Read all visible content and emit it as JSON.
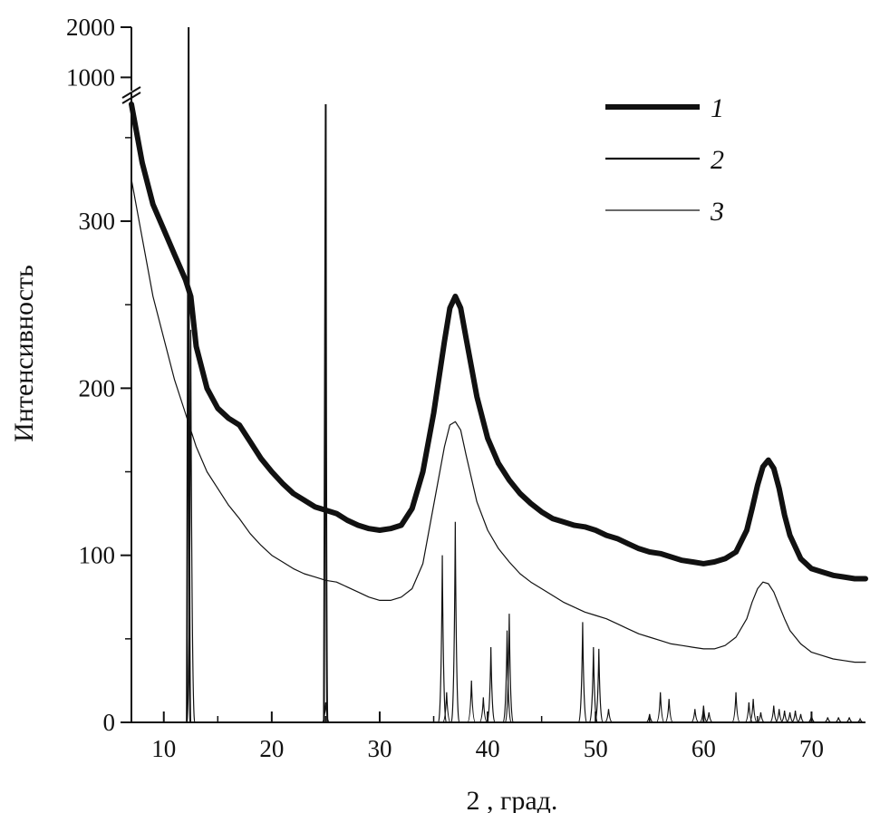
{
  "chart_data": {
    "type": "line",
    "xlabel": "2 , град.",
    "ylabel": "Интенсивность",
    "xlim": [
      7,
      75
    ],
    "ylim": [
      0,
      370
    ],
    "ylim_upper_break": [
      700,
      2000
    ],
    "x_ticks": [
      10,
      20,
      30,
      40,
      50,
      60,
      70
    ],
    "y_ticks": [
      0,
      100,
      200,
      300
    ],
    "y_ticks_upper": [
      1000,
      2000
    ],
    "axis_break": "y-axis, between 370 and 1000",
    "grid": false,
    "legend_position": "top-right",
    "colors": {
      "ink": "#111111",
      "background": "#ffffff"
    },
    "series": [
      {
        "name": "1",
        "style": "thick",
        "x": [
          7,
          8,
          9,
          10,
          11,
          12,
          12.5,
          13,
          14,
          15,
          16,
          17,
          18,
          19,
          20,
          21,
          22,
          23,
          24,
          25,
          26,
          27,
          28,
          29,
          30,
          31,
          32,
          33,
          34,
          35,
          36,
          36.5,
          37,
          37.5,
          38,
          39,
          40,
          41,
          42,
          43,
          44,
          45,
          46,
          47,
          48,
          49,
          50,
          51,
          52,
          53,
          54,
          55,
          56,
          57,
          58,
          59,
          60,
          61,
          62,
          63,
          64,
          64.5,
          65,
          65.5,
          66,
          66.5,
          67,
          67.5,
          68,
          69,
          70,
          71,
          72,
          73,
          74,
          75
        ],
        "y": [
          370,
          335,
          310,
          295,
          280,
          265,
          255,
          225,
          200,
          188,
          182,
          178,
          168,
          158,
          150,
          143,
          137,
          133,
          129,
          127,
          125,
          121,
          118,
          116,
          115,
          116,
          118,
          128,
          150,
          185,
          228,
          248,
          255,
          248,
          230,
          195,
          170,
          155,
          145,
          137,
          131,
          126,
          122,
          120,
          118,
          117,
          115,
          112,
          110,
          107,
          104,
          102,
          101,
          99,
          97,
          96,
          95,
          96,
          98,
          102,
          115,
          128,
          142,
          153,
          157,
          152,
          140,
          124,
          112,
          98,
          92,
          90,
          88,
          87,
          86,
          86
        ]
      },
      {
        "name": "2",
        "style": "medium",
        "type": "stick",
        "peaks": [
          [
            12.3,
            2000
          ],
          [
            25.0,
            370
          ]
        ],
        "note": "sharp reference peaks"
      },
      {
        "name": "3",
        "style": "thin",
        "x": [
          7,
          8,
          9,
          10,
          11,
          12,
          12.5,
          13,
          14,
          15,
          16,
          17,
          18,
          19,
          20,
          21,
          22,
          23,
          24,
          25,
          26,
          27,
          28,
          29,
          30,
          31,
          32,
          33,
          34,
          35,
          36,
          36.5,
          37,
          37.5,
          38,
          39,
          40,
          41,
          42,
          43,
          44,
          45,
          46,
          47,
          48,
          49,
          50,
          51,
          52,
          53,
          54,
          55,
          56,
          57,
          58,
          59,
          60,
          61,
          62,
          63,
          64,
          64.5,
          65,
          65.5,
          66,
          66.5,
          67,
          67.5,
          68,
          69,
          70,
          71,
          72,
          73,
          74,
          75
        ],
        "y": [
          325,
          290,
          255,
          230,
          205,
          185,
          175,
          165,
          150,
          140,
          130,
          122,
          113,
          106,
          100,
          96,
          92,
          89,
          87,
          85,
          84,
          81,
          78,
          75,
          73,
          73,
          75,
          80,
          95,
          130,
          165,
          178,
          180,
          175,
          160,
          132,
          115,
          104,
          96,
          89,
          84,
          80,
          76,
          72,
          69,
          66,
          64,
          62,
          59,
          56,
          53,
          51,
          49,
          47,
          46,
          45,
          44,
          44,
          46,
          51,
          62,
          72,
          80,
          84,
          83,
          78,
          70,
          62,
          55,
          47,
          42,
          40,
          38,
          37,
          36,
          36
        ]
      },
      {
        "name": "",
        "style": "thin",
        "type": "stick",
        "peaks": [
          [
            12.5,
            235
          ],
          [
            25.0,
            12
          ],
          [
            35.8,
            100
          ],
          [
            36.2,
            18
          ],
          [
            37.0,
            120
          ],
          [
            38.5,
            25
          ],
          [
            39.6,
            15
          ],
          [
            40.3,
            45
          ],
          [
            41.8,
            55
          ],
          [
            42.0,
            65
          ],
          [
            48.8,
            60
          ],
          [
            49.8,
            45
          ],
          [
            50.3,
            44
          ],
          [
            51.2,
            8
          ],
          [
            55.0,
            5
          ],
          [
            56.0,
            18
          ],
          [
            56.8,
            14
          ],
          [
            59.2,
            8
          ],
          [
            60.0,
            10
          ],
          [
            60.5,
            6
          ],
          [
            63.0,
            18
          ],
          [
            64.2,
            12
          ],
          [
            64.6,
            14
          ],
          [
            65.3,
            6
          ],
          [
            66.5,
            10
          ],
          [
            67.0,
            8
          ],
          [
            67.5,
            7
          ],
          [
            68.0,
            6
          ],
          [
            68.5,
            7
          ],
          [
            69.0,
            5
          ],
          [
            70.0,
            4
          ],
          [
            71.5,
            3
          ],
          [
            72.5,
            3
          ],
          [
            73.5,
            3
          ],
          [
            74.5,
            2
          ]
        ]
      }
    ]
  }
}
